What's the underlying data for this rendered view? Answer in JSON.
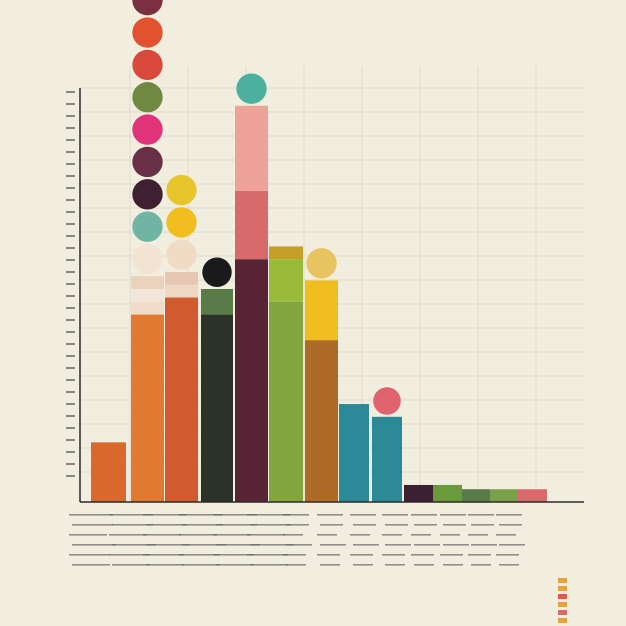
{
  "colors": {
    "background": "#f1eedf",
    "grid": "#d8d4c4",
    "axis": "#2a2a2a",
    "text": "#555555"
  },
  "chart_data": {
    "type": "bar",
    "title": "",
    "xlabel": "",
    "ylabel": "",
    "grid": true,
    "ylim": [
      0,
      100
    ],
    "bars": [
      {
        "segments": [
          {
            "value": 14,
            "color": "#d9692c"
          }
        ],
        "circles": []
      },
      {
        "segments": [
          {
            "value": 44,
            "color": "#e07a30"
          },
          {
            "value": 3,
            "color": "#f0dcc8"
          },
          {
            "value": 3,
            "color": "#f2e6d8"
          },
          {
            "value": 3,
            "color": "#ead2bc"
          }
        ],
        "circles": [
          {
            "color": "#f3e3d3"
          },
          {
            "color": "#70b4a4"
          },
          {
            "color": "#3e2030"
          },
          {
            "color": "#6a3048"
          },
          {
            "color": "#e0347a"
          },
          {
            "color": "#6f8a40"
          },
          {
            "color": "#d94a3a"
          },
          {
            "color": "#e2522e"
          },
          {
            "color": "#7a3040"
          },
          {
            "color": "#9a2040"
          },
          {
            "color": "#d4502e"
          },
          {
            "color": "#e39a2a"
          },
          {
            "color": "#2e7488"
          },
          {
            "color": "#5c6e3c"
          },
          {
            "color": "#d6542e"
          }
        ]
      },
      {
        "segments": [
          {
            "value": 48,
            "color": "#d15a2e"
          },
          {
            "value": 3,
            "color": "#eed8c4"
          },
          {
            "value": 3,
            "color": "#e8c6b4"
          }
        ],
        "circles": [
          {
            "color": "#f0dcc4"
          },
          {
            "color": "#f0be1e"
          },
          {
            "color": "#e7c62c"
          }
        ]
      },
      {
        "segments": [
          {
            "value": 44,
            "color": "#2b3227"
          },
          {
            "value": 6,
            "color": "#5a7a48"
          }
        ],
        "circles": [
          {
            "color": "#1a1a1a"
          }
        ]
      },
      {
        "segments": [
          {
            "value": 57,
            "color": "#5a2437"
          },
          {
            "value": 16,
            "color": "#d86a6c"
          },
          {
            "value": 20,
            "color": "#eea39a"
          }
        ],
        "circles": [
          {
            "color": "#4bb09d"
          }
        ]
      },
      {
        "segments": [
          {
            "value": 47,
            "color": "#84a43e"
          },
          {
            "value": 10,
            "color": "#9aba3a"
          },
          {
            "value": 3,
            "color": "#c4a028"
          }
        ],
        "circles": []
      },
      {
        "segments": [
          {
            "value": 38,
            "color": "#b06a28"
          },
          {
            "value": 14,
            "color": "#f1bc1e"
          }
        ],
        "circles": [
          {
            "color": "#e8c460"
          }
        ]
      },
      {
        "segments": [
          {
            "value": 23,
            "color": "#2c8a96"
          }
        ],
        "circles": []
      },
      {
        "segments": [
          {
            "value": 20,
            "color": "#2c8a96"
          }
        ],
        "circles": [
          {
            "color": "#e0646e"
          }
        ]
      },
      {
        "segments": [
          {
            "value": 4,
            "color": "#3a2030"
          }
        ],
        "circles": []
      },
      {
        "segments": [
          {
            "value": 4,
            "color": "#6a9a3a"
          }
        ],
        "circles": []
      },
      {
        "segments": [
          {
            "value": 3,
            "color": "#5a7a48"
          }
        ],
        "circles": []
      },
      {
        "segments": [
          {
            "value": 3,
            "color": "#7aa04a"
          }
        ],
        "circles": []
      },
      {
        "segments": [
          {
            "value": 3,
            "color": "#d86a6c"
          }
        ],
        "circles": []
      }
    ]
  }
}
